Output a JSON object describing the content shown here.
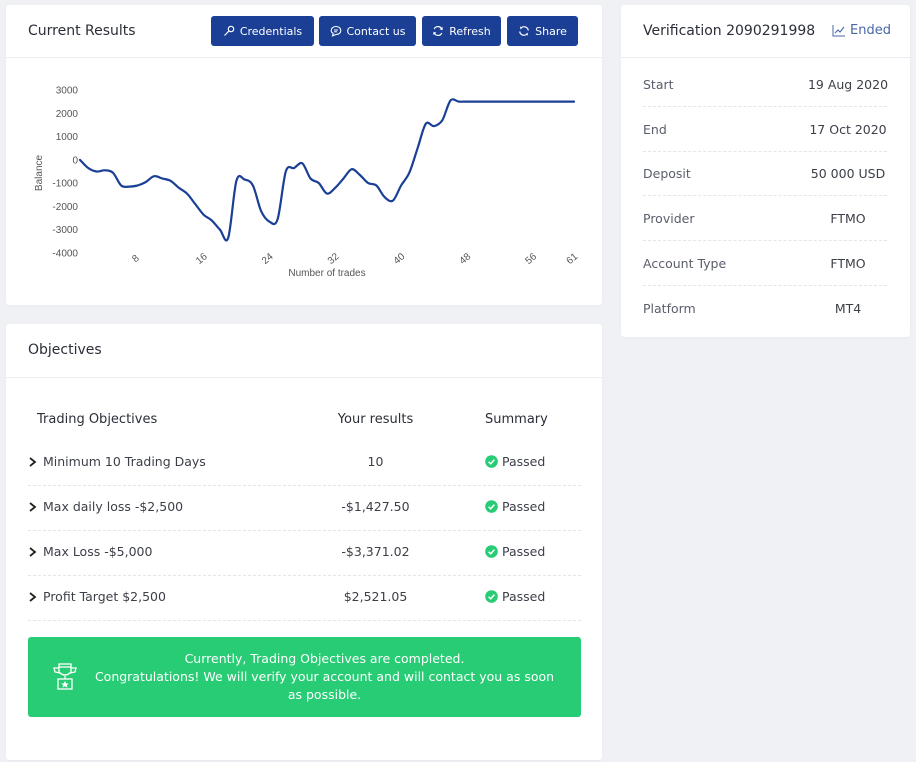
{
  "results": {
    "title": "Current Results",
    "buttons": {
      "credentials": "Credentials",
      "contact": "Contact us",
      "refresh": "Refresh",
      "share": "Share"
    }
  },
  "chart_data": {
    "type": "line",
    "xlabel": "Number of trades",
    "ylabel": "Balance",
    "ylim": [
      -4000,
      3000
    ],
    "xlim": [
      1,
      61
    ],
    "yticks": [
      3000,
      2000,
      1000,
      0,
      -1000,
      -2000,
      -3000,
      -4000
    ],
    "xticks": [
      8,
      16,
      24,
      32,
      40,
      48,
      56,
      61
    ],
    "series": [
      {
        "color": "#1a3f95",
        "x": [
          1,
          2,
          3,
          4,
          5,
          6,
          7,
          8,
          9,
          10,
          11,
          12,
          13,
          14,
          15,
          16,
          17,
          18,
          19,
          20,
          21,
          22,
          23,
          24,
          25,
          26,
          27,
          28,
          29,
          30,
          31,
          32,
          33,
          34,
          35,
          36,
          37,
          38,
          39,
          40,
          41,
          42,
          43,
          44,
          45,
          46,
          47,
          48,
          49,
          50,
          51,
          52,
          53,
          54,
          55,
          56,
          57,
          58,
          59,
          60,
          61
        ],
        "y": [
          0,
          -350,
          -500,
          -450,
          -550,
          -1100,
          -1150,
          -1100,
          -950,
          -700,
          -800,
          -900,
          -1200,
          -1450,
          -1900,
          -2350,
          -2600,
          -3000,
          -3350,
          -900,
          -850,
          -1100,
          -2200,
          -2650,
          -2550,
          -500,
          -350,
          -150,
          -800,
          -1000,
          -1450,
          -1200,
          -800,
          -400,
          -650,
          -1000,
          -1100,
          -1600,
          -1750,
          -1100,
          -550,
          500,
          1550,
          1450,
          1700,
          2550,
          2500,
          2500,
          2500,
          2500,
          2500,
          2500,
          2500,
          2500,
          2500,
          2500,
          2500,
          2500,
          2500,
          2500,
          2500
        ]
      }
    ]
  },
  "verification": {
    "title": "Verification 2090291998",
    "status": "Ended",
    "rows": [
      {
        "label": "Start",
        "value": "19 Aug 2020"
      },
      {
        "label": "End",
        "value": "17 Oct 2020"
      },
      {
        "label": "Deposit",
        "value": "50 000 USD"
      },
      {
        "label": "Provider",
        "value": "FTMO"
      },
      {
        "label": "Account Type",
        "value": "FTMO"
      },
      {
        "label": "Platform",
        "value": "MT4"
      }
    ]
  },
  "objectives": {
    "title": "Objectives",
    "headers": {
      "name": "Trading Objectives",
      "results": "Your results",
      "summary": "Summary"
    },
    "rows": [
      {
        "name": "Minimum 10 Trading Days",
        "result": "10",
        "summary": "Passed"
      },
      {
        "name": "Max daily loss -$2,500",
        "result": "-$1,427.50",
        "summary": "Passed"
      },
      {
        "name": "Max Loss -$5,000",
        "result": "-$3,371.02",
        "summary": "Passed"
      },
      {
        "name": "Profit Target $2,500",
        "result": "$2,521.05",
        "summary": "Passed"
      }
    ],
    "banner": {
      "line1": "Currently, Trading Objectives are completed.",
      "line2": "Congratulations! We will verify your account and will contact you as soon as possible."
    }
  },
  "colors": {
    "accent": "#1a3f95",
    "success": "#27cc74"
  }
}
